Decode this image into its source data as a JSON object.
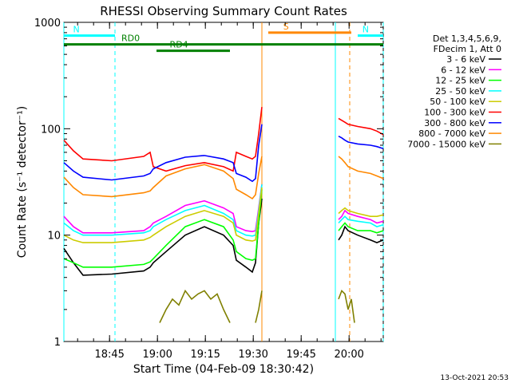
{
  "chart_data": {
    "type": "line",
    "title": "RHESSI Observing Summary Count Rates",
    "xlabel": "Start Time (04-Feb-09 18:30:42)",
    "ylabel": "Count Rate (s⁻¹ detector⁻¹)",
    "yscale": "log",
    "ylim": [
      1,
      1000
    ],
    "xlim_minutes": [
      0,
      100
    ],
    "x_tick_labels": [
      "18:45",
      "19:00",
      "19:15",
      "19:30",
      "19:45",
      "20:00"
    ],
    "x_tick_minutes": [
      14.3,
      29.3,
      44.3,
      59.3,
      74.3,
      89.3
    ],
    "y_tick_labels": [
      "1",
      "10",
      "100",
      "1000"
    ],
    "y_tick_values": [
      1,
      10,
      100,
      1000
    ],
    "legend_header": [
      "Det 1,3,4,5,6,9,",
      "FDecim 1, Att 0"
    ],
    "footer_timestamp": "13-Oct-2021 20:53",
    "series": [
      {
        "name": "3 - 6 keV",
        "color": "#000000",
        "x": [
          0,
          3,
          6,
          15,
          25,
          27,
          28,
          32,
          38,
          44,
          50,
          53,
          54,
          57,
          59,
          60,
          61,
          62,
          63,
          64,
          65,
          85,
          86,
          87,
          88,
          89,
          92,
          96,
          98,
          100
        ],
        "y": [
          7.5,
          5.5,
          4.2,
          4.3,
          4.6,
          5.0,
          5.5,
          7,
          10,
          12,
          10,
          8,
          5.8,
          5,
          4.5,
          5.5,
          13,
          22,
          null,
          null,
          null,
          null,
          9,
          10,
          12,
          11,
          10,
          9,
          8.5,
          9
        ]
      },
      {
        "name": "6 - 12 keV",
        "color": "#ff00ff",
        "x": [
          0,
          3,
          6,
          15,
          25,
          27,
          28,
          32,
          38,
          44,
          50,
          53,
          54,
          57,
          59,
          60,
          61,
          62,
          63,
          85,
          86,
          87,
          88,
          89,
          92,
          96,
          98,
          100
        ],
        "y": [
          15,
          12,
          10.5,
          10.5,
          11,
          12,
          13,
          15,
          19,
          21,
          18,
          16,
          12,
          11,
          10.8,
          11,
          18,
          30,
          null,
          null,
          14,
          15,
          17,
          16,
          15,
          14,
          13,
          13.5
        ]
      },
      {
        "name": "12 - 25 keV",
        "color": "#00ff00",
        "x": [
          0,
          3,
          6,
          15,
          25,
          27,
          28,
          32,
          38,
          44,
          50,
          53,
          54,
          57,
          59,
          60,
          61,
          62,
          63,
          85,
          86,
          87,
          88,
          89,
          92,
          96,
          98,
          100
        ],
        "y": [
          6,
          5.5,
          5,
          5,
          5.3,
          5.6,
          6,
          8,
          12,
          14,
          12,
          9,
          7,
          6,
          5.8,
          6,
          13,
          27,
          null,
          null,
          11,
          12,
          13,
          12,
          11,
          11,
          10.5,
          11
        ]
      },
      {
        "name": "25 - 50 keV",
        "color": "#00ffff",
        "x": [
          0,
          3,
          6,
          15,
          25,
          27,
          28,
          32,
          38,
          44,
          50,
          53,
          54,
          57,
          59,
          60,
          61,
          62,
          63,
          85,
          86,
          87,
          88,
          89,
          92,
          96,
          98,
          100
        ],
        "y": [
          13,
          11,
          10,
          10,
          10.5,
          11,
          12,
          14,
          17,
          19,
          16,
          14,
          11,
          10,
          9.8,
          10,
          17,
          30,
          null,
          null,
          13,
          14,
          15,
          14,
          13.5,
          13,
          12,
          12.5
        ]
      },
      {
        "name": "50 - 100 keV",
        "color": "#cccc00",
        "x": [
          0,
          3,
          6,
          15,
          25,
          27,
          28,
          32,
          38,
          44,
          50,
          53,
          54,
          57,
          59,
          60,
          61,
          62,
          63,
          85,
          86,
          87,
          88,
          89,
          92,
          96,
          98,
          100
        ],
        "y": [
          10,
          9,
          8.5,
          8.5,
          9,
          9.5,
          10,
          12,
          15,
          17,
          15,
          13,
          10,
          9,
          8.8,
          9,
          16,
          28,
          null,
          null,
          16,
          17,
          18,
          17,
          16,
          15,
          15,
          15.5
        ]
      },
      {
        "name": "100 - 300 keV",
        "color": "#ff0000",
        "x": [
          0,
          3,
          6,
          15,
          25,
          27,
          28,
          32,
          38,
          44,
          50,
          53,
          54,
          57,
          59,
          60,
          61,
          62,
          63,
          85,
          86,
          87,
          88,
          89,
          92,
          96,
          98,
          100
        ],
        "y": [
          78,
          62,
          52,
          50,
          55,
          60,
          44,
          40,
          45,
          48,
          44,
          40,
          60,
          55,
          52,
          55,
          90,
          160,
          null,
          null,
          125,
          120,
          115,
          110,
          105,
          100,
          95,
          88
        ]
      },
      {
        "name": "300 - 800 keV",
        "color": "#0000ff",
        "x": [
          0,
          3,
          6,
          15,
          25,
          27,
          28,
          32,
          38,
          44,
          50,
          53,
          54,
          57,
          59,
          60,
          61,
          62,
          63,
          85,
          86,
          87,
          88,
          89,
          92,
          96,
          98,
          100
        ],
        "y": [
          48,
          40,
          35,
          33,
          36,
          38,
          42,
          48,
          54,
          56,
          52,
          48,
          38,
          35,
          32,
          34,
          70,
          110,
          null,
          null,
          85,
          82,
          78,
          75,
          72,
          70,
          68,
          65
        ]
      },
      {
        "name": "800 - 7000 keV",
        "color": "#ff8800",
        "x": [
          0,
          3,
          6,
          15,
          25,
          27,
          28,
          32,
          38,
          44,
          50,
          53,
          54,
          57,
          59,
          60,
          61,
          62,
          63,
          85,
          86,
          87,
          88,
          89,
          92,
          96,
          98,
          100
        ],
        "y": [
          35,
          28,
          24,
          23,
          25,
          26,
          28,
          36,
          42,
          46,
          40,
          34,
          27,
          24,
          22,
          24,
          38,
          55,
          null,
          null,
          55,
          52,
          48,
          44,
          40,
          38,
          36,
          34
        ]
      },
      {
        "name": "7000 - 15000 keV",
        "color": "#808000",
        "x": [
          30,
          32,
          34,
          36,
          38,
          40,
          42,
          44,
          46,
          48,
          50,
          52,
          58,
          60,
          61,
          62,
          85,
          86,
          87,
          88,
          89,
          90,
          91
        ],
        "y": [
          1.5,
          2.0,
          2.5,
          2.2,
          3.0,
          2.5,
          2.8,
          3.0,
          2.5,
          2.8,
          2.0,
          1.5,
          null,
          1.5,
          2.0,
          3.0,
          null,
          2.5,
          3.0,
          2.8,
          2.0,
          2.5,
          1.5
        ]
      }
    ],
    "annotations": [
      {
        "label": "N",
        "color": "#00ffff",
        "x_start": 0,
        "x_end": 16,
        "y": 750
      },
      {
        "label": "N",
        "color": "#00ffff",
        "x_start": 92,
        "x_end": 100,
        "y": 750
      },
      {
        "label": "S",
        "color": "#ff8800",
        "x_start": 64,
        "x_end": 90,
        "y": 800
      },
      {
        "label": "RD0",
        "color": "#008000",
        "x_start": 0,
        "x_end": 100,
        "y": 620
      },
      {
        "label": "RD4",
        "color": "#008000",
        "x_start": 29,
        "x_end": 52,
        "y": 540
      }
    ],
    "vertical_lines": [
      {
        "x": 0,
        "color": "#00ffff",
        "dashed": false
      },
      {
        "x": 16,
        "color": "#00ffff",
        "dashed": true
      },
      {
        "x": 62,
        "color": "#ff8800",
        "dashed": false
      },
      {
        "x": 85,
        "color": "#00ffff",
        "dashed": false
      },
      {
        "x": 89.5,
        "color": "#ff8800",
        "dashed": true
      },
      {
        "x": 100,
        "color": "#00ffff",
        "dashed": true
      }
    ]
  }
}
